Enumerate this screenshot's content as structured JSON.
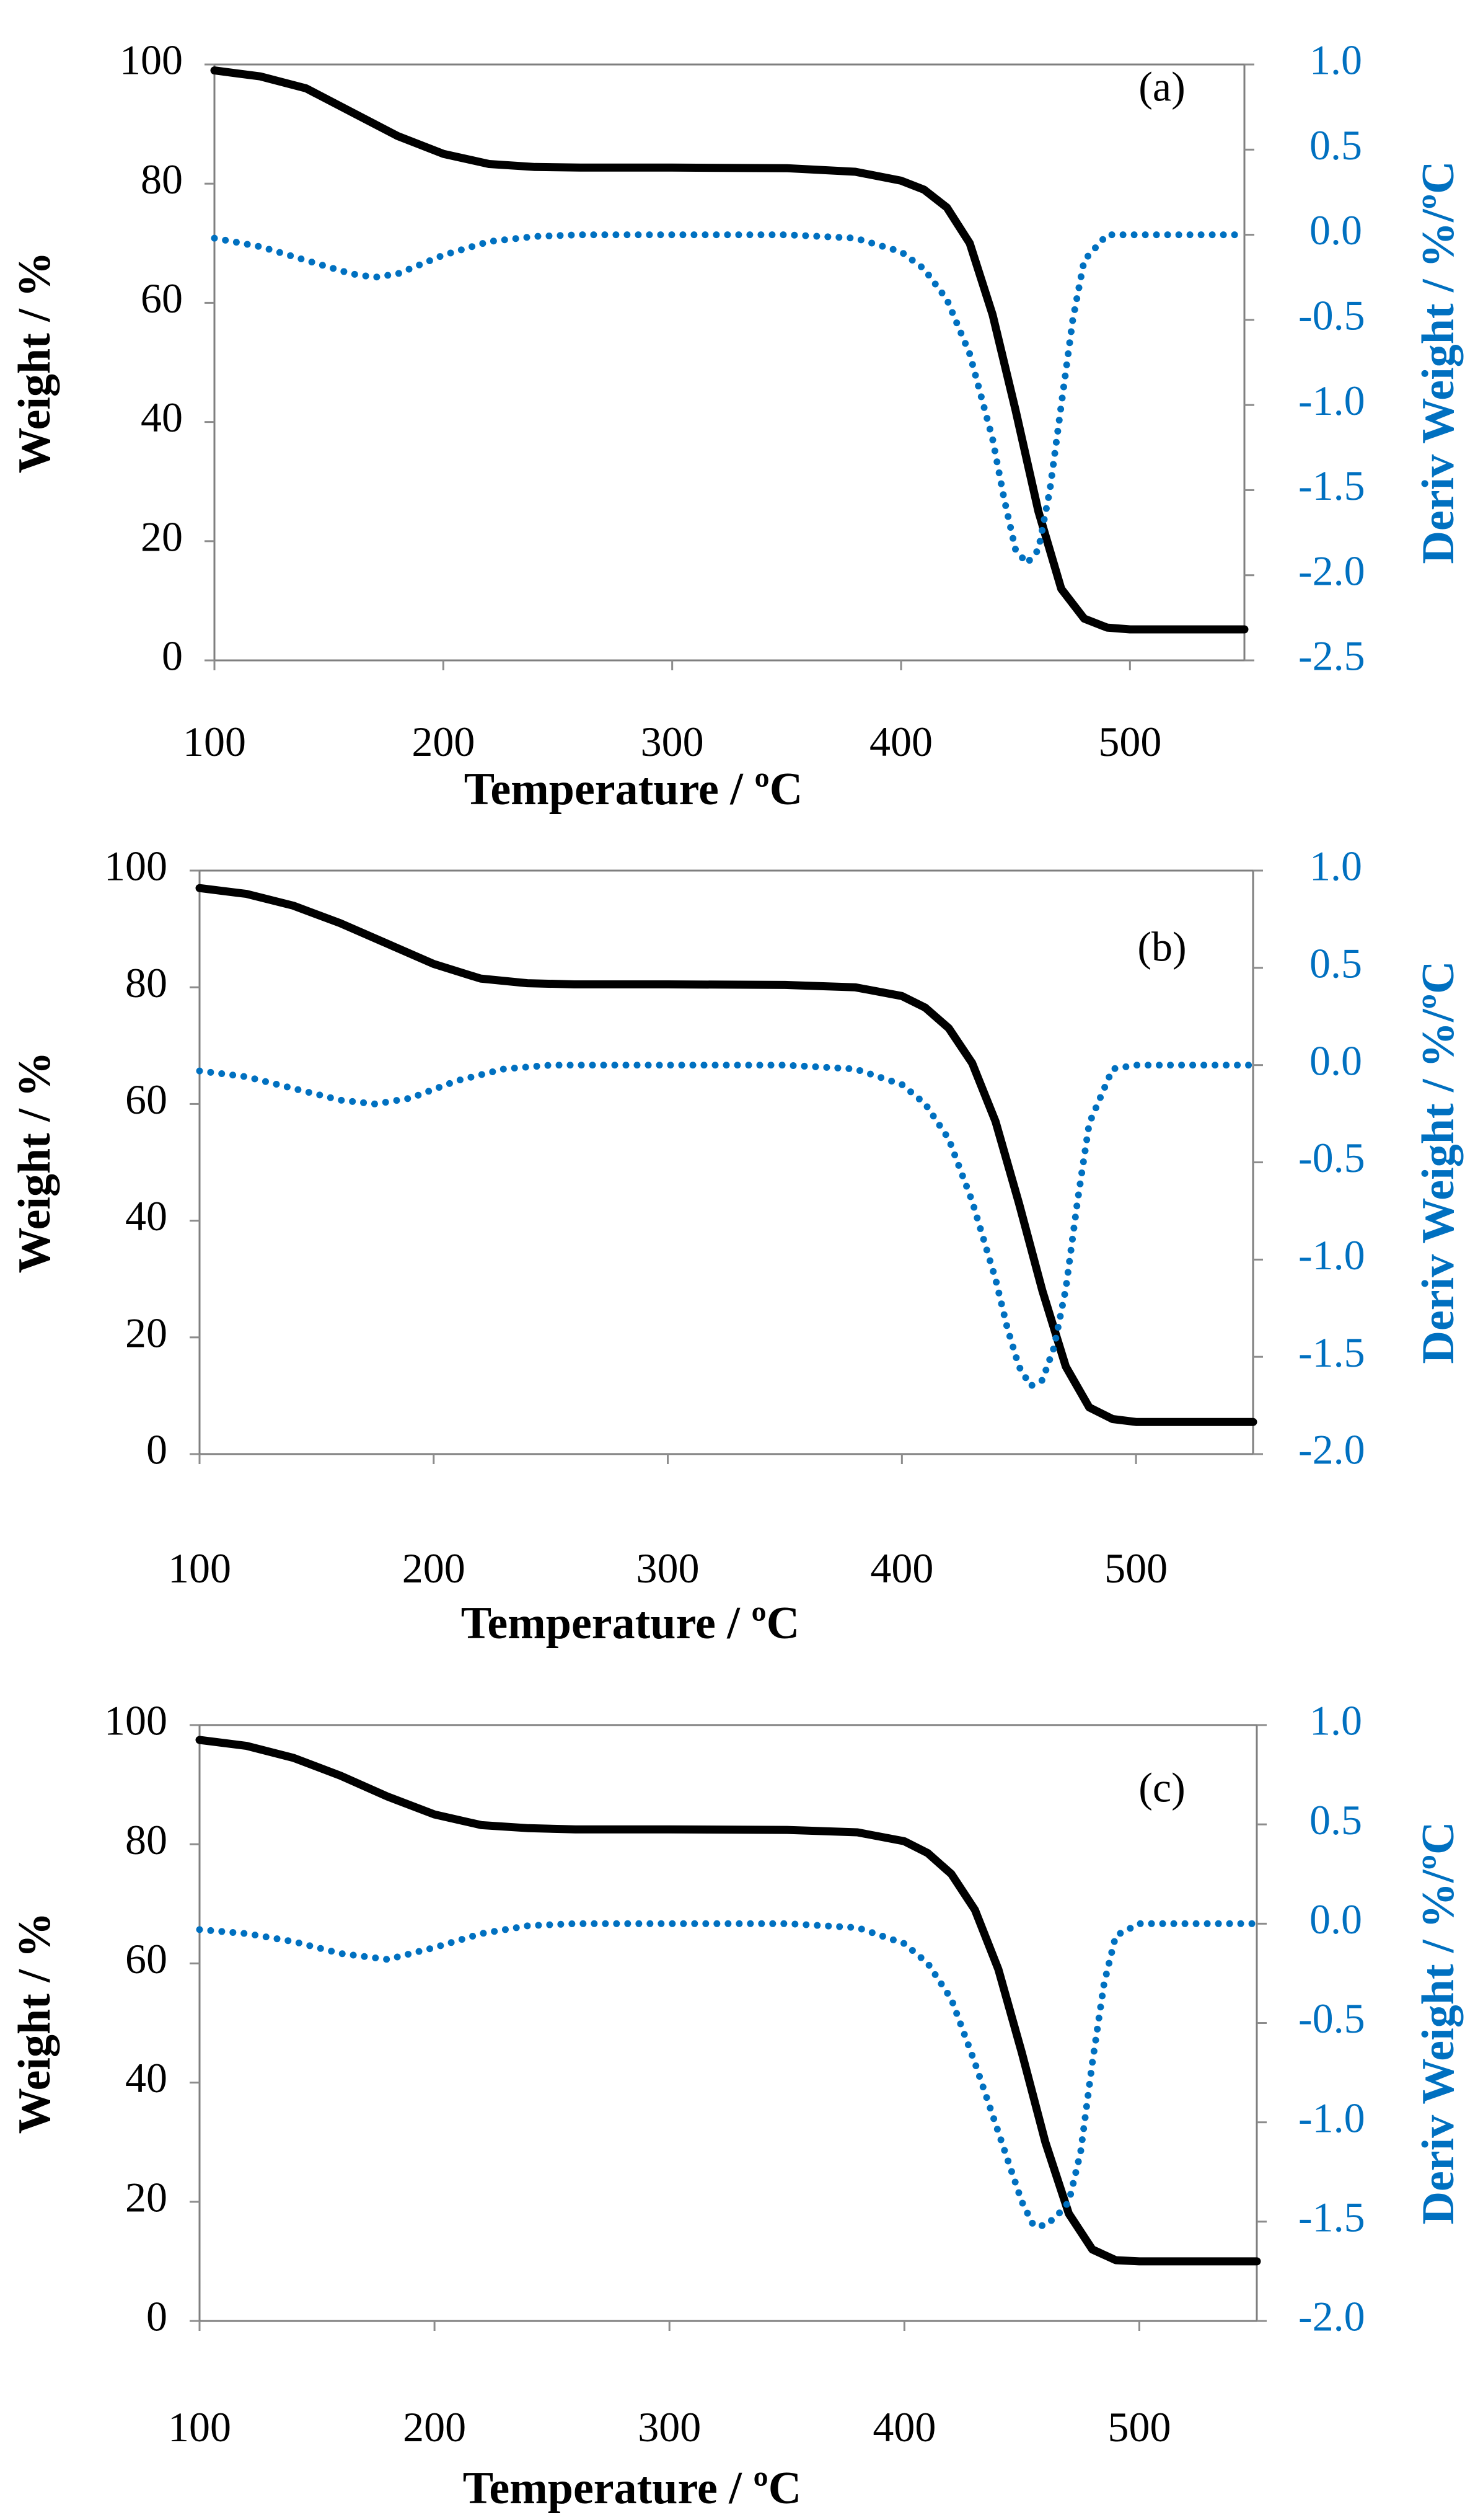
{
  "chart_data": [
    {
      "type": "line",
      "panel_label": "(a)",
      "xlabel": "Temperature / ºC",
      "ylabel": "Weight / %",
      "y2label": "Deriv Weight  / %/ºC",
      "xlim": [
        100,
        550
      ],
      "ylim": [
        0,
        100
      ],
      "y2lim": [
        -2.5,
        1.0
      ],
      "x_ticks": [
        "100",
        "200",
        "300",
        "400",
        "500"
      ],
      "y_ticks": [
        "0",
        "20",
        "40",
        "60",
        "80",
        "100"
      ],
      "y2_ticks": [
        "-2.5",
        "-2.0",
        "-1.5",
        "-1.0",
        "-0.5",
        "0.0",
        "0.5",
        "1.0"
      ],
      "series": [
        {
          "name": "Weight",
          "axis": "left",
          "style": "solid",
          "color": "#000000",
          "x": [
            100,
            120,
            140,
            160,
            180,
            200,
            220,
            240,
            260,
            300,
            350,
            380,
            400,
            410,
            420,
            430,
            440,
            450,
            460,
            470,
            480,
            490,
            500,
            550
          ],
          "y": [
            99,
            98,
            96,
            92,
            88,
            85,
            83.3,
            82.8,
            82.7,
            82.7,
            82.6,
            82,
            80.5,
            79,
            76,
            70,
            58,
            42,
            25,
            12,
            7,
            5.5,
            5.2,
            5.2
          ]
        },
        {
          "name": "Deriv Weight",
          "axis": "right",
          "style": "dotted",
          "color": "#0070C0",
          "x": [
            100,
            120,
            140,
            160,
            170,
            180,
            200,
            220,
            240,
            260,
            300,
            350,
            380,
            400,
            410,
            420,
            430,
            440,
            445,
            450,
            455,
            460,
            465,
            470,
            475,
            480,
            490,
            500,
            550
          ],
          "y": [
            -0.02,
            -0.07,
            -0.15,
            -0.23,
            -0.25,
            -0.23,
            -0.12,
            -0.04,
            -0.01,
            0,
            0,
            0,
            -0.02,
            -0.1,
            -0.2,
            -0.38,
            -0.7,
            -1.2,
            -1.55,
            -1.85,
            -1.93,
            -1.85,
            -1.5,
            -1.0,
            -0.5,
            -0.15,
            0,
            0,
            0
          ]
        }
      ]
    },
    {
      "type": "line",
      "panel_label": "(b)",
      "xlabel": "Temperature / ºC",
      "ylabel": "Weight / %",
      "y2label": "Deriv Weight  / %/ºC",
      "xlim": [
        100,
        550
      ],
      "ylim": [
        0,
        100
      ],
      "y2lim": [
        -2.0,
        1.0
      ],
      "x_ticks": [
        "100",
        "200",
        "300",
        "400",
        "500"
      ],
      "y_ticks": [
        "0",
        "20",
        "40",
        "60",
        "80",
        "100"
      ],
      "y2_ticks": [
        "-2.0",
        "-1.5",
        "-1.0",
        "-0.5",
        "0.0",
        "0.5",
        "1.0"
      ],
      "series": [
        {
          "name": "Weight",
          "axis": "left",
          "style": "solid",
          "color": "#000000",
          "x": [
            100,
            120,
            140,
            160,
            180,
            200,
            220,
            240,
            260,
            300,
            350,
            380,
            400,
            410,
            420,
            430,
            440,
            450,
            460,
            470,
            480,
            490,
            500,
            550
          ],
          "y": [
            97,
            96,
            94,
            91,
            87.5,
            84,
            81.5,
            80.7,
            80.5,
            80.5,
            80.4,
            80,
            78.5,
            76.5,
            73,
            67,
            57,
            43,
            28,
            15,
            8,
            6,
            5.5,
            5.5
          ]
        },
        {
          "name": "Deriv Weight",
          "axis": "right",
          "style": "dotted",
          "color": "#0070C0",
          "x": [
            100,
            120,
            140,
            160,
            175,
            190,
            210,
            230,
            250,
            300,
            350,
            380,
            400,
            410,
            420,
            430,
            440,
            445,
            450,
            455,
            460,
            465,
            470,
            475,
            480,
            490,
            500,
            550
          ],
          "y": [
            -0.03,
            -0.06,
            -0.12,
            -0.18,
            -0.2,
            -0.17,
            -0.08,
            -0.02,
            0,
            0,
            0,
            -0.02,
            -0.1,
            -0.2,
            -0.38,
            -0.7,
            -1.1,
            -1.35,
            -1.55,
            -1.65,
            -1.62,
            -1.45,
            -1.15,
            -0.7,
            -0.3,
            -0.02,
            0,
            0
          ]
        }
      ]
    },
    {
      "type": "line",
      "panel_label": "(c)",
      "xlabel": "Temperature / ºC",
      "ylabel": "Weight / %",
      "y2label": "Deriv Weight  / %/ºC",
      "xlim": [
        100,
        550
      ],
      "ylim": [
        0,
        100
      ],
      "y2lim": [
        -2.0,
        1.0
      ],
      "x_ticks": [
        "100",
        "200",
        "300",
        "400",
        "500"
      ],
      "y_ticks": [
        "0",
        "20",
        "40",
        "60",
        "80",
        "100"
      ],
      "y2_ticks": [
        "-2.0",
        "-1.5",
        "-1.0",
        "-0.5",
        "0.0",
        "0.5",
        "1.0"
      ],
      "series": [
        {
          "name": "Weight",
          "axis": "left",
          "style": "solid",
          "color": "#000000",
          "x": [
            100,
            120,
            140,
            160,
            180,
            200,
            220,
            240,
            260,
            300,
            350,
            380,
            400,
            410,
            420,
            430,
            440,
            450,
            460,
            470,
            480,
            490,
            500,
            550
          ],
          "y": [
            97.5,
            96.5,
            94.5,
            91.5,
            88,
            85,
            83.2,
            82.7,
            82.5,
            82.5,
            82.4,
            82,
            80.5,
            78.5,
            75,
            69,
            59,
            45,
            30,
            18,
            12,
            10.2,
            10,
            10
          ]
        },
        {
          "name": "Deriv Weight",
          "axis": "right",
          "style": "dotted",
          "color": "#0070C0",
          "x": [
            100,
            120,
            140,
            160,
            180,
            200,
            220,
            240,
            260,
            300,
            350,
            380,
            400,
            410,
            420,
            430,
            440,
            450,
            455,
            460,
            465,
            470,
            475,
            480,
            485,
            490,
            500,
            550
          ],
          "y": [
            -0.03,
            -0.05,
            -0.09,
            -0.15,
            -0.18,
            -0.12,
            -0.05,
            -0.01,
            0,
            0,
            0,
            -0.02,
            -0.1,
            -0.2,
            -0.38,
            -0.7,
            -1.05,
            -1.4,
            -1.52,
            -1.52,
            -1.47,
            -1.4,
            -1.15,
            -0.7,
            -0.3,
            -0.06,
            0,
            0
          ]
        }
      ]
    }
  ]
}
